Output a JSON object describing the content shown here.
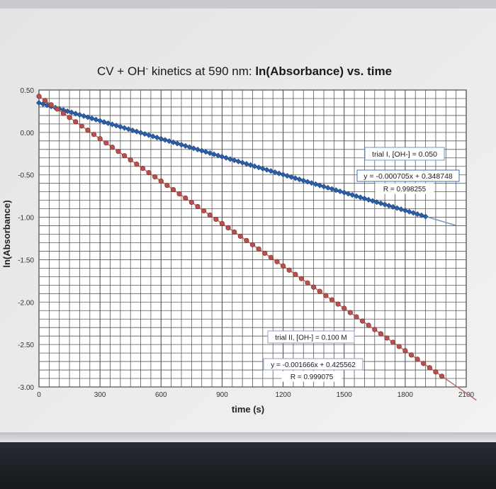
{
  "chart_data": {
    "type": "scatter",
    "title": "CV + OH kinetics at 590 nm: ln(Absorbance) vs. time",
    "title_parts": {
      "prefix": "CV + OH",
      "superscript": "-",
      "middle": " kinetics at 590 nm: ",
      "bold": "ln(Absorbance) vs. time"
    },
    "xlabel": "time (s)",
    "ylabel": "ln(Absorbance)",
    "xlim": [
      0,
      2100
    ],
    "ylim": [
      -3.0,
      0.5
    ],
    "x_ticks": [
      "0",
      "300",
      "600",
      "900",
      "1200",
      "1500",
      "1800",
      "2100"
    ],
    "y_ticks": [
      "0.50",
      "0.00",
      "-0.50",
      "-1.00",
      "-1.50",
      "-2.00",
      "-2.50",
      "-3.00"
    ],
    "grid": true,
    "series": [
      {
        "name": "trial I, [OH-] = 0.050",
        "color": "#2b5fa8",
        "marker": "diamond",
        "x_start": 0,
        "x_end": 1900,
        "x_step": 20,
        "fit": {
          "slope": -0.000705,
          "intercept": 0.348748,
          "r2": 0.998255
        }
      },
      {
        "name": "trial II, [OH-] = 0.100 M",
        "color": "#b8504c",
        "marker": "circle",
        "x_start": 0,
        "x_end": 2000,
        "x_step": 30,
        "fit": {
          "slope": -0.001666,
          "intercept": 0.425562,
          "r2": 0.999075
        }
      }
    ],
    "annotations": [
      {
        "label": "trial I, [OH-] = 0.050",
        "equation": "y = -0.000705x + 0.348748",
        "r2_text": "R  = 0.998255"
      },
      {
        "label": "trial II, [OH-] = 0.100 M",
        "equation": "y = -0.001666x + 0.425562",
        "r2_text": "R  = 0.999075"
      }
    ]
  }
}
